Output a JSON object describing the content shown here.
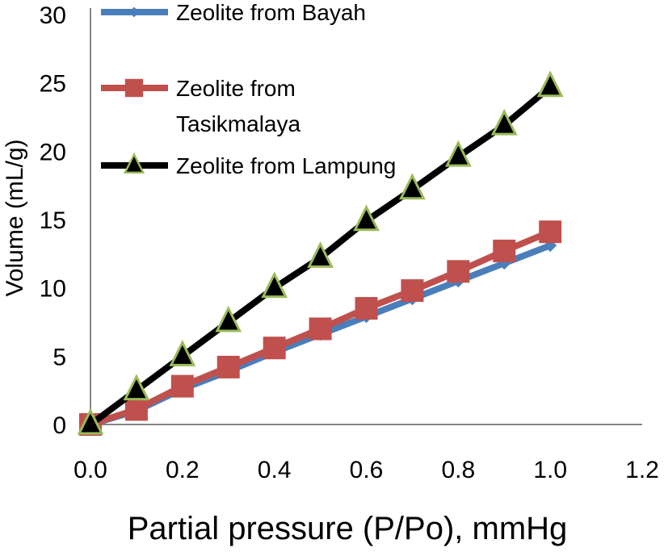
{
  "chart_data": {
    "type": "line",
    "title": "",
    "xlabel": "Partial pressure (P/Po), mmHg",
    "ylabel": "Volume (mL/g)",
    "xlim": [
      0,
      1.2
    ],
    "ylim": [
      0,
      30
    ],
    "xticks": [
      "0.0",
      "0.2",
      "0.4",
      "0.6",
      "0.8",
      "1.0",
      "1.2"
    ],
    "yticks": [
      "0",
      "5",
      "10",
      "15",
      "20",
      "25",
      "30"
    ],
    "grid": false,
    "legend_position": "top-left",
    "x": [
      0,
      0.1,
      0.2,
      0.3,
      0.4,
      0.5,
      0.6,
      0.7,
      0.8,
      0.9,
      1.0
    ],
    "series": [
      {
        "name": "Zeolite  from Bayah",
        "color": "#4a7ebb",
        "marker": "diamond",
        "values": [
          0,
          1.0,
          2.6,
          3.9,
          5.3,
          6.6,
          7.9,
          9.2,
          10.5,
          11.8,
          13.1
        ]
      },
      {
        "name": "Zeolite  from Tasikmalaya",
        "legend_lines": [
          "Zeolite  from",
          "Tasikmalaya"
        ],
        "color": "#c0504d",
        "marker": "square",
        "values": [
          0,
          1.1,
          2.8,
          4.2,
          5.6,
          7.0,
          8.5,
          9.8,
          11.2,
          12.7,
          14.1
        ]
      },
      {
        "name": "Zeolite from  Lampung",
        "color": "#000000",
        "marker_edge": "#9bbb59",
        "marker": "triangle",
        "values": [
          0,
          2.5,
          5.0,
          7.5,
          10.0,
          12.2,
          14.9,
          17.2,
          19.6,
          21.9,
          24.7
        ]
      }
    ]
  }
}
